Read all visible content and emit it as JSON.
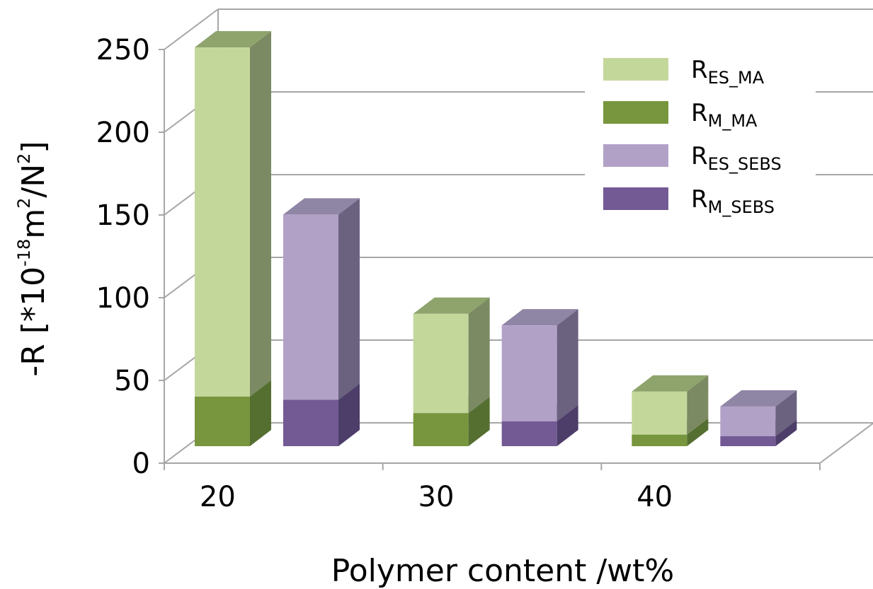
{
  "chart_data": {
    "type": "bar",
    "stacked": true,
    "three_d": true,
    "categories": [
      "20",
      "30",
      "40"
    ],
    "groups": [
      {
        "name": "MA",
        "series": [
          {
            "name": "R_M_MA",
            "name_main": "R",
            "name_sub": "M_MA",
            "values": [
              30,
              20,
              7
            ],
            "color": "#77963d",
            "top_color": "#708a52",
            "side_color": "#556f31"
          },
          {
            "name": "R_ES_MA",
            "name_main": "R",
            "name_sub": "ES_MA",
            "values": [
              211,
              60,
              26
            ],
            "color": "#c4d79b",
            "top_color": "#8ea46c",
            "side_color": "#7b8a62"
          }
        ]
      },
      {
        "name": "SEBS",
        "series": [
          {
            "name": "R_M_SEBS",
            "name_main": "R",
            "name_sub": "M_SEBS",
            "values": [
              28,
              15,
              6
            ],
            "color": "#735a94",
            "top_color": "#6d6390",
            "side_color": "#4d3d69"
          },
          {
            "name": "R_ES_SEBS",
            "name_main": "R",
            "name_sub": "ES_SEBS",
            "values": [
              112,
              58,
              18
            ],
            "color": "#b2a1c7",
            "top_color": "#8f85a5",
            "side_color": "#6b6280"
          }
        ]
      }
    ],
    "legend_order": [
      "R_ES_MA",
      "R_M_MA",
      "R_ES_SEBS",
      "R_M_SEBS"
    ],
    "legend_position": "top-right",
    "ylim": [
      0,
      250
    ],
    "yticks": [
      "0",
      "50",
      "100",
      "150",
      "200",
      "250"
    ],
    "xlabel": "Polymer content /wt%",
    "ylabel": {
      "prefix": "-R [*10",
      "exp1": "-18",
      "mid": "m",
      "exp2": "2",
      "mid2": "/N",
      "exp3": "2",
      "suffix": "]"
    },
    "grid": true
  }
}
